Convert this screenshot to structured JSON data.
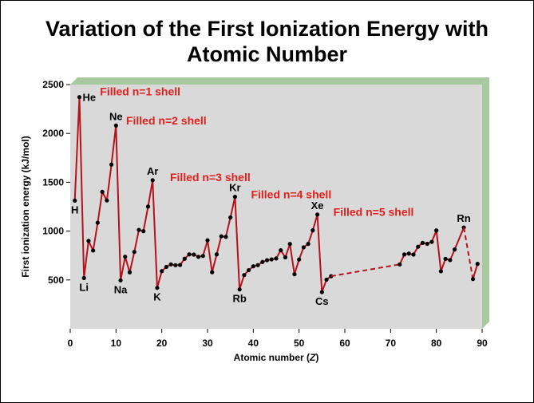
{
  "title_line1": "Variation of the First Ionization Energy with",
  "title_line2": "Atomic Number",
  "chart_data": {
    "type": "line",
    "title": "Variation of the First Ionization Energy with Atomic Number",
    "xlabel_prefix": "Atomic number (",
    "xlabel_var": "Z",
    "xlabel_suffix": ")",
    "ylabel": "First ionization energy (kJ/mol)",
    "xlim": [
      0,
      90
    ],
    "ylim": [
      0,
      2500
    ],
    "x_ticks": [
      0,
      10,
      20,
      30,
      40,
      50,
      60,
      70,
      80,
      90
    ],
    "y_ticks": [
      500,
      1000,
      1500,
      2000,
      2500
    ],
    "line_color": "#b5121b",
    "point_color": "#000000",
    "panel_color": "#d9d9d9",
    "panel_side_color": "#a8c8a0",
    "annotation_color": "#e0201c",
    "series": [
      {
        "values": [
          [
            1,
            1312
          ],
          [
            2,
            2372
          ],
          [
            3,
            520
          ],
          [
            4,
            900
          ],
          [
            5,
            801
          ],
          [
            6,
            1086
          ],
          [
            7,
            1402
          ],
          [
            8,
            1314
          ],
          [
            9,
            1681
          ],
          [
            10,
            2081
          ],
          [
            11,
            496
          ],
          [
            12,
            738
          ],
          [
            13,
            578
          ],
          [
            14,
            787
          ],
          [
            15,
            1012
          ],
          [
            16,
            1000
          ],
          [
            17,
            1251
          ],
          [
            18,
            1521
          ],
          [
            19,
            419
          ],
          [
            20,
            590
          ],
          [
            21,
            633
          ],
          [
            22,
            659
          ],
          [
            23,
            651
          ],
          [
            24,
            653
          ],
          [
            25,
            717
          ],
          [
            26,
            762
          ],
          [
            27,
            760
          ],
          [
            28,
            737
          ],
          [
            29,
            746
          ],
          [
            30,
            906
          ],
          [
            31,
            579
          ],
          [
            32,
            762
          ],
          [
            33,
            947
          ],
          [
            34,
            941
          ],
          [
            35,
            1140
          ],
          [
            36,
            1351
          ],
          [
            37,
            403
          ],
          [
            38,
            550
          ],
          [
            39,
            600
          ],
          [
            40,
            640
          ],
          [
            41,
            652
          ],
          [
            42,
            684
          ],
          [
            43,
            702
          ],
          [
            44,
            710
          ],
          [
            45,
            720
          ],
          [
            46,
            804
          ],
          [
            47,
            731
          ],
          [
            48,
            868
          ],
          [
            49,
            558
          ],
          [
            50,
            709
          ],
          [
            51,
            834
          ],
          [
            52,
            869
          ],
          [
            53,
            1008
          ],
          [
            54,
            1170
          ],
          [
            55,
            376
          ],
          [
            56,
            503
          ],
          [
            57,
            538
          ]
        ]
      },
      {
        "dashed": true,
        "values": [
          [
            57,
            538
          ],
          [
            72,
            659
          ]
        ]
      },
      {
        "values": [
          [
            72,
            659
          ],
          [
            73,
            761
          ],
          [
            74,
            770
          ],
          [
            75,
            760
          ],
          [
            76,
            840
          ],
          [
            77,
            880
          ],
          [
            78,
            870
          ],
          [
            79,
            890
          ],
          [
            80,
            1007
          ],
          [
            81,
            589
          ],
          [
            82,
            716
          ],
          [
            83,
            703
          ],
          [
            84,
            812
          ],
          [
            86,
            1037
          ]
        ]
      },
      {
        "dashed": true,
        "values": [
          [
            86,
            1037
          ],
          [
            88,
            509
          ]
        ]
      },
      {
        "values": [
          [
            88,
            509
          ],
          [
            89,
            665
          ]
        ]
      }
    ],
    "element_labels": [
      {
        "text": "H",
        "x": 1,
        "y": 1312,
        "pos": "below"
      },
      {
        "text": "He",
        "x": 2,
        "y": 2372,
        "pos": "right"
      },
      {
        "text": "Li",
        "x": 3,
        "y": 520,
        "pos": "below"
      },
      {
        "text": "Ne",
        "x": 10,
        "y": 2081,
        "pos": "above"
      },
      {
        "text": "Na",
        "x": 11,
        "y": 496,
        "pos": "below"
      },
      {
        "text": "Ar",
        "x": 18,
        "y": 1521,
        "pos": "above"
      },
      {
        "text": "K",
        "x": 19,
        "y": 419,
        "pos": "below"
      },
      {
        "text": "Kr",
        "x": 36,
        "y": 1351,
        "pos": "above"
      },
      {
        "text": "Rb",
        "x": 37,
        "y": 403,
        "pos": "below"
      },
      {
        "text": "Xe",
        "x": 54,
        "y": 1170,
        "pos": "above"
      },
      {
        "text": "Cs",
        "x": 55,
        "y": 376,
        "pos": "below"
      },
      {
        "text": "Rn",
        "x": 86,
        "y": 1037,
        "pos": "above"
      }
    ],
    "annotations": [
      {
        "text": "Filled n=1 shell",
        "x": 6.5,
        "y": 2390
      },
      {
        "text": "Filled n=2 shell",
        "x": 12.2,
        "y": 2090
      },
      {
        "text": "Filled n=3 shell",
        "x": 21.8,
        "y": 1510
      },
      {
        "text": "Filled n=4 shell",
        "x": 39.5,
        "y": 1335
      },
      {
        "text": "Filled n=5 shell",
        "x": 57.5,
        "y": 1155
      }
    ]
  }
}
